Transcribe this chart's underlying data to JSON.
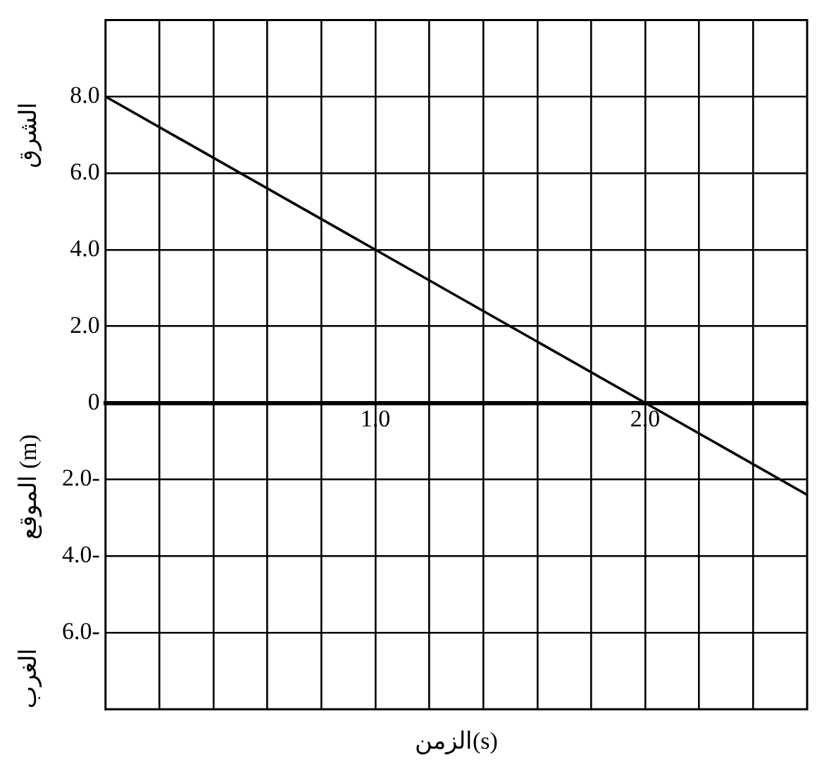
{
  "chart_data": {
    "type": "line",
    "xlabel": "الزمن(s)",
    "ylabel": "الموقع (m)",
    "annotations": [
      "الشرق",
      "الغرب"
    ],
    "x": [
      0,
      2.6
    ],
    "series": [
      {
        "color": "#000000",
        "values": [
          8,
          -2.4
        ]
      }
    ],
    "xlim": [
      0,
      2.6
    ],
    "xticks": [
      {
        "value": 0.2,
        "label": null
      },
      {
        "value": 0.4,
        "label": null
      },
      {
        "value": 0.6,
        "label": null
      },
      {
        "value": 0.8,
        "label": null
      },
      {
        "value": 1,
        "label": "1.0"
      },
      {
        "value": 1.2,
        "label": null
      },
      {
        "value": 1.4,
        "label": null
      },
      {
        "value": 1.6,
        "label": null
      },
      {
        "value": 1.8,
        "label": null
      },
      {
        "value": 2,
        "label": "2.0"
      },
      {
        "value": 2.2,
        "label": null
      },
      {
        "value": 2.4,
        "label": null
      }
    ],
    "ylim": [
      -8,
      10
    ],
    "yticks": [
      {
        "value": 8,
        "label": "8.0"
      },
      {
        "value": 6,
        "label": "6.0"
      },
      {
        "value": 4,
        "label": "4.0"
      },
      {
        "value": 2,
        "label": "2.0"
      },
      0,
      {
        "value": -2,
        "label": "2.0-"
      },
      {
        "value": -4,
        "label": "4.0-"
      },
      {
        "value": -6,
        "label": "6.0-"
      }
    ],
    "grid": true,
    "legend": false,
    "marker": "none",
    "line_style": "solid"
  }
}
